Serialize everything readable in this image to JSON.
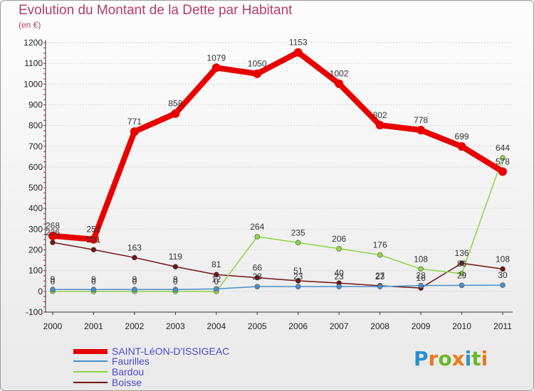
{
  "title": "Evolution du Montant de la Dette par Habitant",
  "subtitle": "(en €)",
  "logo": "Proxiti",
  "chart_data": {
    "type": "line",
    "title": "Evolution du Montant de la Dette par Habitant",
    "ylabel": "(en €)",
    "xlabel": "",
    "ylim": [
      -100,
      1200
    ],
    "yticks": [
      -100,
      0,
      100,
      200,
      300,
      400,
      500,
      600,
      700,
      800,
      900,
      1000,
      1100,
      1200
    ],
    "x": [
      "2000",
      "2001",
      "2002",
      "2003",
      "2004",
      "2005",
      "2006",
      "2007",
      "2008",
      "2009",
      "2010",
      "2011"
    ],
    "grid": "horizontal",
    "series": [
      {
        "name": "SAINT-LéON-D'ISSIGEAC",
        "color": "#e80000",
        "values": [
          268,
          251,
          771,
          858,
          1079,
          1050,
          1153,
          1002,
          802,
          778,
          699,
          578
        ]
      },
      {
        "name": "Faurilles",
        "color": "#4a8ec8",
        "values": [
          9,
          9,
          9,
          9,
          12,
          23,
          23,
          23,
          23,
          28,
          29,
          30
        ]
      },
      {
        "name": "Bardou",
        "color": "#8fd444",
        "values": [
          0,
          0,
          0,
          0,
          0,
          264,
          235,
          206,
          176,
          108,
          86,
          644
        ]
      },
      {
        "name": "Boisse",
        "color": "#6e1414",
        "values": [
          236,
          201,
          163,
          119,
          81,
          66,
          51,
          40,
          27,
          16,
          136,
          108
        ]
      }
    ]
  }
}
